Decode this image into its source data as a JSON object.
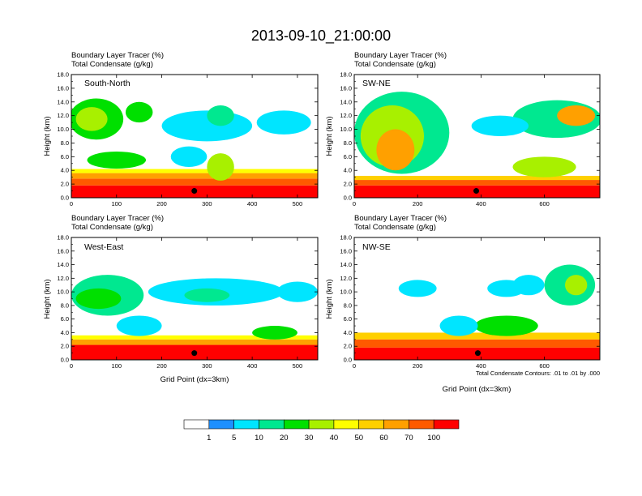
{
  "title": "2013-09-10_21:00:00",
  "chart_data": {
    "type": "heatmap",
    "shared": {
      "subtitle_line1": "Boundary Layer Tracer   (%)",
      "subtitle_line2": "Total Condensate   (g/kg)",
      "ylabel": "Height (km)",
      "xlabel": "Grid Point (dx=3km)",
      "ylim": [
        0,
        18
      ],
      "yticks": [
        "0.0",
        "2.0",
        "4.0",
        "6.0",
        "8.0",
        "10.0",
        "12.0",
        "14.0",
        "16.0",
        "18.0"
      ]
    },
    "panels": [
      {
        "name": "South-North",
        "xlim": [
          0,
          545
        ],
        "xticks": [
          0,
          100,
          200,
          300,
          400,
          500
        ],
        "surface_marker_x": 272,
        "bands": [
          {
            "x0": 0,
            "x1": 545,
            "z0": 0,
            "z1": 1.8,
            "level": 10
          },
          {
            "x0": 0,
            "x1": 545,
            "z0": 1.8,
            "z1": 2.8,
            "level": 9
          },
          {
            "x0": 0,
            "x1": 545,
            "z0": 2.8,
            "z1": 3.6,
            "level": 8
          },
          {
            "x0": 0,
            "x1": 545,
            "z0": 3.6,
            "z1": 4.2,
            "level": 6
          }
        ],
        "blobs": [
          {
            "x": 55,
            "z": 11.5,
            "w": 120,
            "h": 6,
            "level": 4
          },
          {
            "x": 45,
            "z": 11.5,
            "w": 70,
            "h": 3.5,
            "level": 5
          },
          {
            "x": 150,
            "z": 12.5,
            "w": 60,
            "h": 3,
            "level": 4
          },
          {
            "x": 300,
            "z": 10.5,
            "w": 200,
            "h": 4.5,
            "level": 2
          },
          {
            "x": 330,
            "z": 12.0,
            "w": 60,
            "h": 3,
            "level": 3
          },
          {
            "x": 470,
            "z": 11.0,
            "w": 120,
            "h": 3.5,
            "level": 2
          },
          {
            "x": 100,
            "z": 5.5,
            "w": 130,
            "h": 2.5,
            "level": 4
          },
          {
            "x": 260,
            "z": 6.0,
            "w": 80,
            "h": 3,
            "level": 2
          },
          {
            "x": 330,
            "z": 4.5,
            "w": 60,
            "h": 4,
            "level": 5
          }
        ]
      },
      {
        "name": "SW-NE",
        "xlim": [
          0,
          775
        ],
        "xticks": [
          0,
          200,
          400,
          600
        ],
        "surface_marker_x": 385,
        "bands": [
          {
            "x0": 0,
            "x1": 775,
            "z0": 0,
            "z1": 1.8,
            "level": 10
          },
          {
            "x0": 0,
            "x1": 775,
            "z0": 1.8,
            "z1": 2.6,
            "level": 9
          },
          {
            "x0": 0,
            "x1": 775,
            "z0": 2.6,
            "z1": 3.2,
            "level": 7
          }
        ],
        "blobs": [
          {
            "x": 150,
            "z": 9.5,
            "w": 300,
            "h": 12,
            "level": 3
          },
          {
            "x": 120,
            "z": 9.0,
            "w": 200,
            "h": 9,
            "level": 5
          },
          {
            "x": 130,
            "z": 7.0,
            "w": 120,
            "h": 6,
            "level": 8
          },
          {
            "x": 640,
            "z": 11.5,
            "w": 280,
            "h": 5.5,
            "level": 3
          },
          {
            "x": 700,
            "z": 12.0,
            "w": 120,
            "h": 3,
            "level": 8
          },
          {
            "x": 460,
            "z": 10.5,
            "w": 180,
            "h": 3,
            "level": 2
          },
          {
            "x": 600,
            "z": 4.5,
            "w": 200,
            "h": 3,
            "level": 5
          }
        ]
      },
      {
        "name": "West-East",
        "xlim": [
          0,
          545
        ],
        "xticks": [
          0,
          100,
          200,
          300,
          400,
          500
        ],
        "surface_marker_x": 272,
        "bands": [
          {
            "x0": 0,
            "x1": 545,
            "z0": 0,
            "z1": 2.2,
            "level": 10
          },
          {
            "x0": 0,
            "x1": 545,
            "z0": 2.2,
            "z1": 3.0,
            "level": 8
          },
          {
            "x0": 0,
            "x1": 545,
            "z0": 3.0,
            "z1": 3.6,
            "level": 6
          }
        ],
        "blobs": [
          {
            "x": 80,
            "z": 9.5,
            "w": 160,
            "h": 6,
            "level": 3
          },
          {
            "x": 60,
            "z": 9.0,
            "w": 100,
            "h": 3,
            "level": 4
          },
          {
            "x": 320,
            "z": 10.0,
            "w": 300,
            "h": 4,
            "level": 2
          },
          {
            "x": 300,
            "z": 9.5,
            "w": 100,
            "h": 2,
            "level": 3
          },
          {
            "x": 500,
            "z": 10.0,
            "w": 90,
            "h": 3,
            "level": 2
          },
          {
            "x": 150,
            "z": 5.0,
            "w": 100,
            "h": 3,
            "level": 2
          },
          {
            "x": 450,
            "z": 4.0,
            "w": 100,
            "h": 2,
            "level": 4
          }
        ]
      },
      {
        "name": "NW-SE",
        "xlim": [
          0,
          775
        ],
        "xticks": [
          0,
          200,
          400,
          600
        ],
        "surface_marker_x": 390,
        "bands": [
          {
            "x0": 0,
            "x1": 775,
            "z0": 0,
            "z1": 1.8,
            "level": 10
          },
          {
            "x0": 0,
            "x1": 775,
            "z0": 1.8,
            "z1": 3.0,
            "level": 9
          },
          {
            "x0": 0,
            "x1": 775,
            "z0": 3.0,
            "z1": 4.0,
            "level": 7
          }
        ],
        "blobs": [
          {
            "x": 680,
            "z": 11.0,
            "w": 160,
            "h": 6,
            "level": 3
          },
          {
            "x": 700,
            "z": 11.0,
            "w": 70,
            "h": 3,
            "level": 5
          },
          {
            "x": 550,
            "z": 11.0,
            "w": 100,
            "h": 3,
            "level": 2
          },
          {
            "x": 480,
            "z": 10.5,
            "w": 120,
            "h": 2.5,
            "level": 2
          },
          {
            "x": 200,
            "z": 10.5,
            "w": 120,
            "h": 2.5,
            "level": 2
          },
          {
            "x": 480,
            "z": 5.0,
            "w": 200,
            "h": 3,
            "level": 4
          },
          {
            "x": 330,
            "z": 5.0,
            "w": 120,
            "h": 3,
            "level": 2
          }
        ],
        "note": "Total Condensate Contours: .01 to .01 by .000"
      }
    ],
    "colorbar": {
      "labels": [
        "1",
        "5",
        "10",
        "20",
        "30",
        "40",
        "50",
        "60",
        "70",
        "100"
      ],
      "colors": [
        "#ffffff",
        "#1e90ff",
        "#00e5ff",
        "#00e890",
        "#00e000",
        "#a8f000",
        "#ffff00",
        "#ffd000",
        "#ffa000",
        "#ff5a00",
        "#ff0000"
      ]
    }
  }
}
